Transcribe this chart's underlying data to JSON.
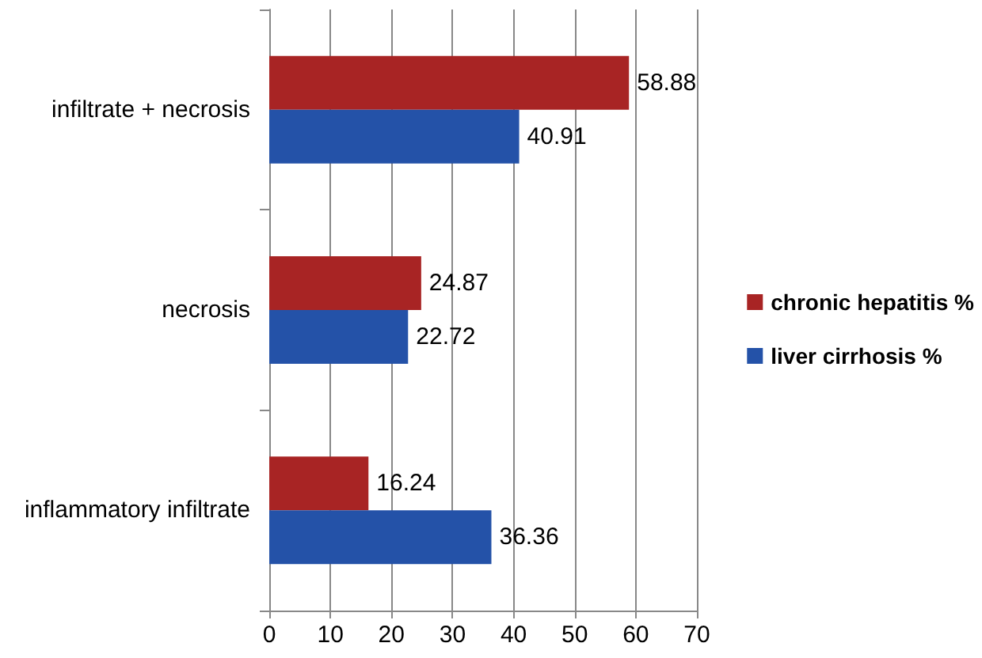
{
  "chart_data": {
    "type": "bar",
    "orientation": "horizontal",
    "categories": [
      "infiltrate + necrosis",
      "necrosis",
      "inflammatory infiltrate"
    ],
    "series": [
      {
        "name": "chronic hepatitis %",
        "color": "#a82424",
        "values": [
          58.88,
          24.87,
          16.24
        ]
      },
      {
        "name": "liver cirrhosis %",
        "color": "#2452a8",
        "values": [
          40.91,
          22.72,
          36.36
        ]
      }
    ],
    "xlim": [
      0,
      70
    ],
    "xticks": [
      0,
      10,
      20,
      30,
      40,
      50,
      60,
      70
    ],
    "grid": "x",
    "legend": "right",
    "data_labels": true
  }
}
